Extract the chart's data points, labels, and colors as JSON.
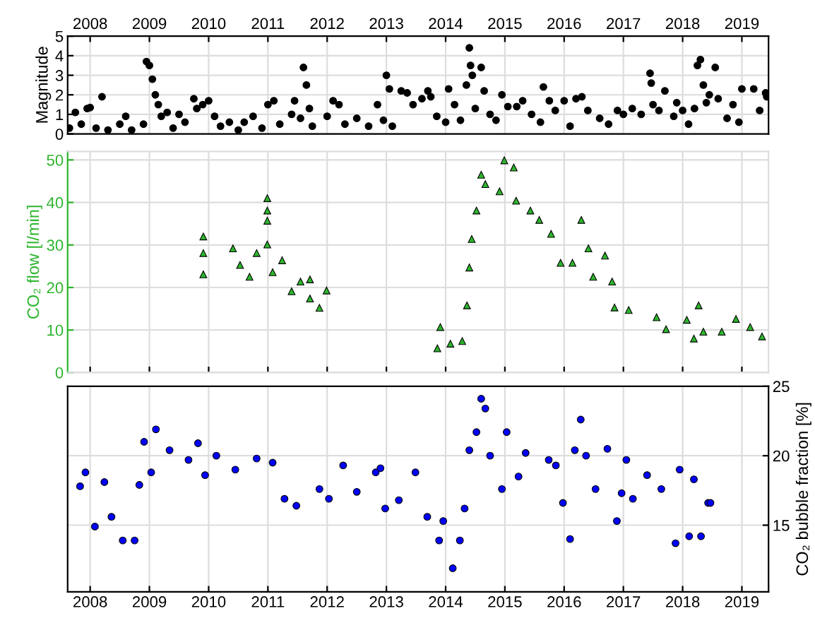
{
  "chart_data": [
    {
      "type": "scatter",
      "ylabel": "Magnitude",
      "xlim": [
        2007.62,
        2019.45
      ],
      "xticks": [
        2008,
        2009,
        2010,
        2011,
        2012,
        2013,
        2014,
        2015,
        2016,
        2017,
        2018,
        2019
      ],
      "ylim": [
        0,
        5
      ],
      "yticks": [
        0,
        1,
        2,
        3,
        4,
        5
      ],
      "grid": true,
      "marker": "circle",
      "series": [
        {
          "color": "#000000",
          "x": [
            2007.65,
            2007.75,
            2007.85,
            2007.95,
            2008.0,
            2008.1,
            2008.2,
            2008.3,
            2008.5,
            2008.6,
            2008.7,
            2008.9,
            2008.95,
            2009.0,
            2009.05,
            2009.1,
            2009.15,
            2009.2,
            2009.3,
            2009.4,
            2009.5,
            2009.6,
            2009.75,
            2009.8,
            2009.9,
            2010.0,
            2010.1,
            2010.2,
            2010.35,
            2010.5,
            2010.6,
            2010.75,
            2010.9,
            2011.0,
            2011.1,
            2011.2,
            2011.4,
            2011.45,
            2011.55,
            2011.6,
            2011.65,
            2011.7,
            2011.75,
            2012.0,
            2012.1,
            2012.2,
            2012.3,
            2012.5,
            2012.7,
            2012.85,
            2012.95,
            2013.0,
            2013.05,
            2013.1,
            2013.25,
            2013.35,
            2013.45,
            2013.6,
            2013.7,
            2013.75,
            2013.85,
            2014.0,
            2014.05,
            2014.15,
            2014.25,
            2014.35,
            2014.4,
            2014.42,
            2014.45,
            2014.5,
            2014.6,
            2014.65,
            2014.75,
            2014.85,
            2014.95,
            2015.05,
            2015.2,
            2015.3,
            2015.45,
            2015.6,
            2015.65,
            2015.75,
            2015.85,
            2016.0,
            2016.1,
            2016.2,
            2016.3,
            2016.4,
            2016.6,
            2016.75,
            2016.9,
            2017.0,
            2017.15,
            2017.3,
            2017.45,
            2017.47,
            2017.5,
            2017.6,
            2017.7,
            2017.85,
            2017.9,
            2018.0,
            2018.1,
            2018.2,
            2018.25,
            2018.3,
            2018.35,
            2018.4,
            2018.45,
            2018.55,
            2018.6,
            2018.75,
            2018.85,
            2018.95,
            2019.0,
            2019.2,
            2019.3,
            2019.4,
            2019.42
          ],
          "values": [
            0.3,
            1.1,
            0.5,
            1.3,
            1.35,
            0.3,
            1.9,
            0.2,
            0.5,
            0.9,
            0.2,
            0.5,
            3.7,
            3.5,
            2.8,
            2.0,
            1.5,
            0.9,
            1.1,
            0.3,
            1.0,
            0.6,
            1.8,
            1.3,
            1.5,
            1.7,
            0.9,
            0.4,
            0.6,
            0.2,
            0.6,
            0.9,
            0.3,
            1.5,
            1.7,
            0.5,
            1.0,
            1.7,
            0.8,
            3.4,
            2.5,
            1.3,
            0.4,
            0.9,
            1.7,
            1.5,
            0.5,
            0.8,
            0.4,
            1.5,
            0.7,
            3.0,
            2.3,
            0.4,
            2.2,
            2.1,
            1.5,
            1.8,
            2.2,
            1.9,
            0.9,
            0.6,
            2.3,
            1.5,
            0.7,
            2.5,
            4.4,
            3.5,
            3.0,
            1.3,
            3.4,
            2.2,
            1.0,
            0.7,
            2.0,
            1.4,
            1.4,
            1.7,
            1.0,
            0.6,
            2.4,
            1.7,
            1.2,
            1.7,
            0.4,
            1.8,
            1.9,
            1.2,
            0.8,
            0.5,
            1.2,
            1.0,
            1.3,
            1.0,
            3.1,
            2.6,
            1.5,
            1.2,
            2.2,
            0.9,
            1.6,
            1.2,
            0.5,
            1.3,
            3.5,
            3.8,
            2.5,
            1.6,
            2.0,
            3.4,
            1.8,
            0.8,
            1.5,
            0.6,
            2.3,
            2.3,
            1.2,
            2.1,
            1.9
          ]
        }
      ]
    },
    {
      "type": "scatter",
      "ylabel": "CO₂ flow [l/min]",
      "xlim": [
        2007.62,
        2019.45
      ],
      "xticks": [
        2008,
        2009,
        2010,
        2011,
        2012,
        2013,
        2014,
        2015,
        2016,
        2017,
        2018,
        2019
      ],
      "ylim": [
        0,
        52
      ],
      "yticks": [
        0,
        10,
        20,
        30,
        40,
        50
      ],
      "grid": true,
      "marker": "triangle",
      "tick_labels": "y",
      "series": [
        {
          "color": "#2db52d",
          "x": [
            2009.91,
            2009.91,
            2009.91,
            2010.41,
            2010.53,
            2010.69,
            2010.81,
            2010.99,
            2010.99,
            2010.99,
            2010.99,
            2011.08,
            2011.24,
            2011.4,
            2011.55,
            2011.71,
            2011.71,
            2011.87,
            2011.99,
            2013.86,
            2013.91,
            2014.08,
            2014.28,
            2014.36,
            2014.4,
            2014.44,
            2014.52,
            2014.6,
            2014.67,
            2014.91,
            2014.99,
            2015.15,
            2015.19,
            2015.43,
            2015.58,
            2015.78,
            2015.94,
            2016.14,
            2016.29,
            2016.41,
            2016.49,
            2016.69,
            2016.81,
            2016.85,
            2017.09,
            2017.56,
            2017.72,
            2018.07,
            2018.19,
            2018.27,
            2018.35,
            2018.66,
            2018.9,
            2019.14,
            2019.34
          ],
          "values": [
            23.1,
            28.1,
            32.0,
            29.2,
            25.3,
            22.5,
            28.1,
            41.0,
            38.1,
            35.7,
            30.1,
            23.6,
            26.4,
            19.1,
            21.4,
            17.4,
            21.9,
            15.2,
            19.3,
            5.7,
            10.7,
            6.8,
            7.4,
            15.8,
            24.7,
            31.4,
            38.1,
            46.5,
            44.3,
            42.6,
            49.9,
            48.2,
            40.4,
            38.1,
            35.9,
            32.6,
            25.8,
            25.8,
            35.9,
            29.2,
            22.5,
            27.5,
            21.4,
            15.3,
            14.7,
            13.0,
            10.2,
            12.4,
            8.0,
            15.8,
            9.6,
            9.6,
            12.6,
            10.7,
            8.5
          ]
        }
      ]
    },
    {
      "type": "scatter",
      "y2label": "CO₂ bubble fraction [%]",
      "xlim": [
        2007.62,
        2019.45
      ],
      "xticks": [
        2008,
        2009,
        2010,
        2011,
        2012,
        2013,
        2014,
        2015,
        2016,
        2017,
        2018,
        2019
      ],
      "y2lim": [
        10.2,
        25
      ],
      "y2ticks": [
        15,
        20,
        25
      ],
      "grid": true,
      "marker": "circle",
      "series": [
        {
          "color": "#0000ff",
          "axis": "y2",
          "x": [
            2007.83,
            2007.92,
            2008.08,
            2008.24,
            2008.36,
            2008.55,
            2008.75,
            2008.83,
            2008.91,
            2009.03,
            2009.11,
            2009.34,
            2009.66,
            2009.82,
            2009.94,
            2010.13,
            2010.45,
            2010.81,
            2011.08,
            2011.28,
            2011.48,
            2011.87,
            2012.03,
            2012.27,
            2012.5,
            2012.82,
            2012.9,
            2012.98,
            2013.21,
            2013.49,
            2013.69,
            2013.89,
            2013.96,
            2014.12,
            2014.24,
            2014.32,
            2014.4,
            2014.52,
            2014.6,
            2014.67,
            2014.75,
            2014.95,
            2015.03,
            2015.23,
            2015.35,
            2015.74,
            2015.86,
            2015.98,
            2016.1,
            2016.18,
            2016.28,
            2016.37,
            2016.53,
            2016.73,
            2016.89,
            2016.97,
            2017.05,
            2017.16,
            2017.4,
            2017.64,
            2017.88,
            2017.95,
            2018.11,
            2018.19,
            2018.31,
            2018.43,
            2018.47
          ],
          "values": [
            17.8,
            18.8,
            14.9,
            18.1,
            15.6,
            13.9,
            13.9,
            17.9,
            21.0,
            18.8,
            21.9,
            20.4,
            19.7,
            20.9,
            18.6,
            20.0,
            19.0,
            19.8,
            19.5,
            16.9,
            16.4,
            17.6,
            16.9,
            19.3,
            17.4,
            18.8,
            19.1,
            16.2,
            16.8,
            18.8,
            15.6,
            13.9,
            15.3,
            11.9,
            13.9,
            16.2,
            20.4,
            21.7,
            24.1,
            23.4,
            20.0,
            17.6,
            21.7,
            18.5,
            20.2,
            19.7,
            19.3,
            16.6,
            14.0,
            20.4,
            22.6,
            20.0,
            17.6,
            20.5,
            15.3,
            17.3,
            19.7,
            16.9,
            18.6,
            17.6,
            13.7,
            19.0,
            14.2,
            18.3,
            14.2,
            16.6,
            16.6
          ]
        }
      ]
    }
  ]
}
